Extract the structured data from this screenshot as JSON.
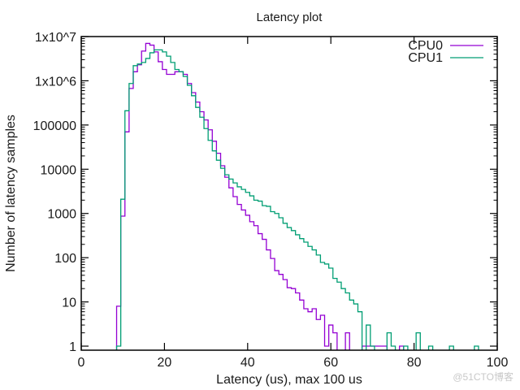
{
  "chart_data": {
    "type": "line",
    "style": "histogram steps",
    "title": "Latency plot",
    "xlabel": "Latency (us), max 100 us",
    "ylabel": "Number of latency samples",
    "xlim": [
      0,
      100
    ],
    "ylim": [
      0.81,
      10000000
    ],
    "yscale": "log",
    "grid": false,
    "legend": "top-right",
    "x_ticks": [
      0,
      20,
      40,
      60,
      80,
      100
    ],
    "x_tick_labels": [
      "0",
      "20",
      "40",
      "60",
      "80",
      "100"
    ],
    "y_ticks": [
      1,
      10,
      100,
      1000,
      10000,
      100000,
      1000000,
      10000000
    ],
    "y_tick_labels": [
      "1",
      "10",
      "100",
      "1000",
      "10000",
      "100000",
      "1x10^6",
      "1x10^7"
    ],
    "series": [
      {
        "name": "CPU0",
        "color": "#9400d3",
        "x": [
          9,
          10,
          11,
          12,
          13,
          14,
          15,
          16,
          17,
          18,
          19,
          20,
          21,
          22,
          23,
          24,
          25,
          26,
          27,
          28,
          29,
          30,
          31,
          32,
          33,
          34,
          35,
          36,
          37,
          38,
          39,
          40,
          41,
          42,
          43,
          44,
          45,
          46,
          47,
          48,
          49,
          50,
          51,
          52,
          53,
          54,
          55,
          56,
          57,
          58,
          59,
          60,
          61,
          62,
          63,
          64,
          65,
          66,
          67,
          68,
          69,
          70,
          71,
          72,
          73,
          74,
          75,
          76,
          77
        ],
        "values": [
          8,
          870,
          70000,
          670000,
          1600000,
          2300000,
          4700000,
          7000000,
          6400000,
          4500000,
          2700000,
          1800000,
          1400000,
          1400000,
          1600000,
          1600000,
          1400000,
          870000,
          540000,
          330000,
          200000,
          130000,
          78000,
          43000,
          23000,
          12000,
          6600,
          3800,
          2400,
          1600,
          1200,
          910,
          650,
          530,
          350,
          260,
          150,
          96,
          51,
          42,
          32,
          21,
          20,
          16,
          11,
          7,
          6,
          7,
          4,
          5,
          1,
          3,
          2,
          0,
          0,
          2,
          0,
          0,
          0,
          1,
          1,
          1,
          1,
          1,
          1,
          0,
          0,
          0,
          1
        ]
      },
      {
        "name": "CPU1",
        "color": "#009e73",
        "x": [
          9,
          10,
          11,
          12,
          13,
          14,
          15,
          16,
          17,
          18,
          19,
          20,
          21,
          22,
          23,
          24,
          25,
          26,
          27,
          28,
          29,
          30,
          31,
          32,
          33,
          34,
          35,
          36,
          37,
          38,
          39,
          40,
          41,
          42,
          43,
          44,
          45,
          46,
          47,
          48,
          49,
          50,
          51,
          52,
          53,
          54,
          55,
          56,
          57,
          58,
          59,
          60,
          61,
          62,
          63,
          64,
          65,
          66,
          67,
          68,
          69,
          70,
          71,
          72,
          73,
          74,
          75,
          76,
          77,
          78,
          79,
          80,
          81,
          82,
          83,
          84,
          85,
          86,
          87,
          88,
          89,
          90,
          91,
          92,
          93,
          94,
          95
        ],
        "values": [
          1,
          2100,
          210000,
          870000,
          2200000,
          2400000,
          2600000,
          3200000,
          4300000,
          5000000,
          5000000,
          4500000,
          3600000,
          2600000,
          1800000,
          1600000,
          1250000,
          790000,
          460000,
          250000,
          150000,
          83000,
          45000,
          26000,
          16000,
          10500,
          7500,
          6000,
          4900,
          4000,
          3500,
          3000,
          2500,
          2000,
          1900,
          1500,
          1450,
          1100,
          1000,
          800,
          600,
          480,
          410,
          330,
          270,
          225,
          180,
          150,
          115,
          78,
          72,
          58,
          34,
          28,
          20,
          16,
          11,
          9,
          6,
          0,
          3,
          1,
          0,
          0,
          0,
          2,
          1,
          0,
          0,
          1,
          0,
          0,
          2,
          0,
          0,
          1,
          0,
          0,
          0,
          0,
          1,
          0,
          0,
          0,
          0,
          0,
          1
        ]
      }
    ]
  },
  "watermark": "@51CTO博客"
}
